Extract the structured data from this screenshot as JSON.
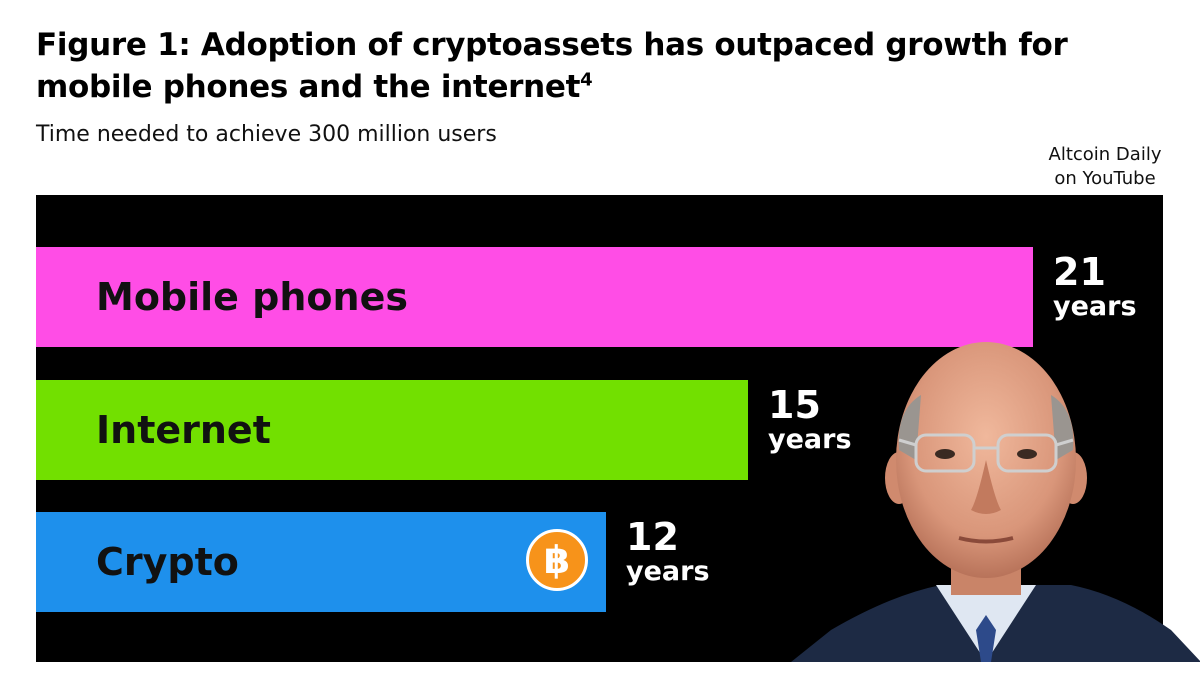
{
  "header": {
    "title": "Figure 1: Adoption of cryptoassets has outpaced growth for mobile phones and the internet",
    "title_footnote": "4",
    "subtitle": "Time needed to achieve 300 million users",
    "watermark_line1": "Altcoin Daily",
    "watermark_line2": "on YouTube"
  },
  "chart_data": {
    "type": "bar",
    "orientation": "horizontal",
    "title": "Figure 1: Adoption of cryptoassets has outpaced growth for mobile phones and the internet",
    "subtitle": "Time needed to achieve 300 million users",
    "categories": [
      "Mobile phones",
      "Internet",
      "Crypto"
    ],
    "values": [
      21,
      15,
      12
    ],
    "unit": "years",
    "colors": [
      "#ff4de6",
      "#72e000",
      "#1e90ec"
    ],
    "background": "#000000",
    "grid": false
  },
  "icons": {
    "crypto_badge": "bitcoin-icon",
    "bitcoin_glyph": "฿"
  },
  "colors": {
    "panel_background": "#000000",
    "value_text": "#ffffff",
    "bitcoin_orange": "#f7931a"
  }
}
